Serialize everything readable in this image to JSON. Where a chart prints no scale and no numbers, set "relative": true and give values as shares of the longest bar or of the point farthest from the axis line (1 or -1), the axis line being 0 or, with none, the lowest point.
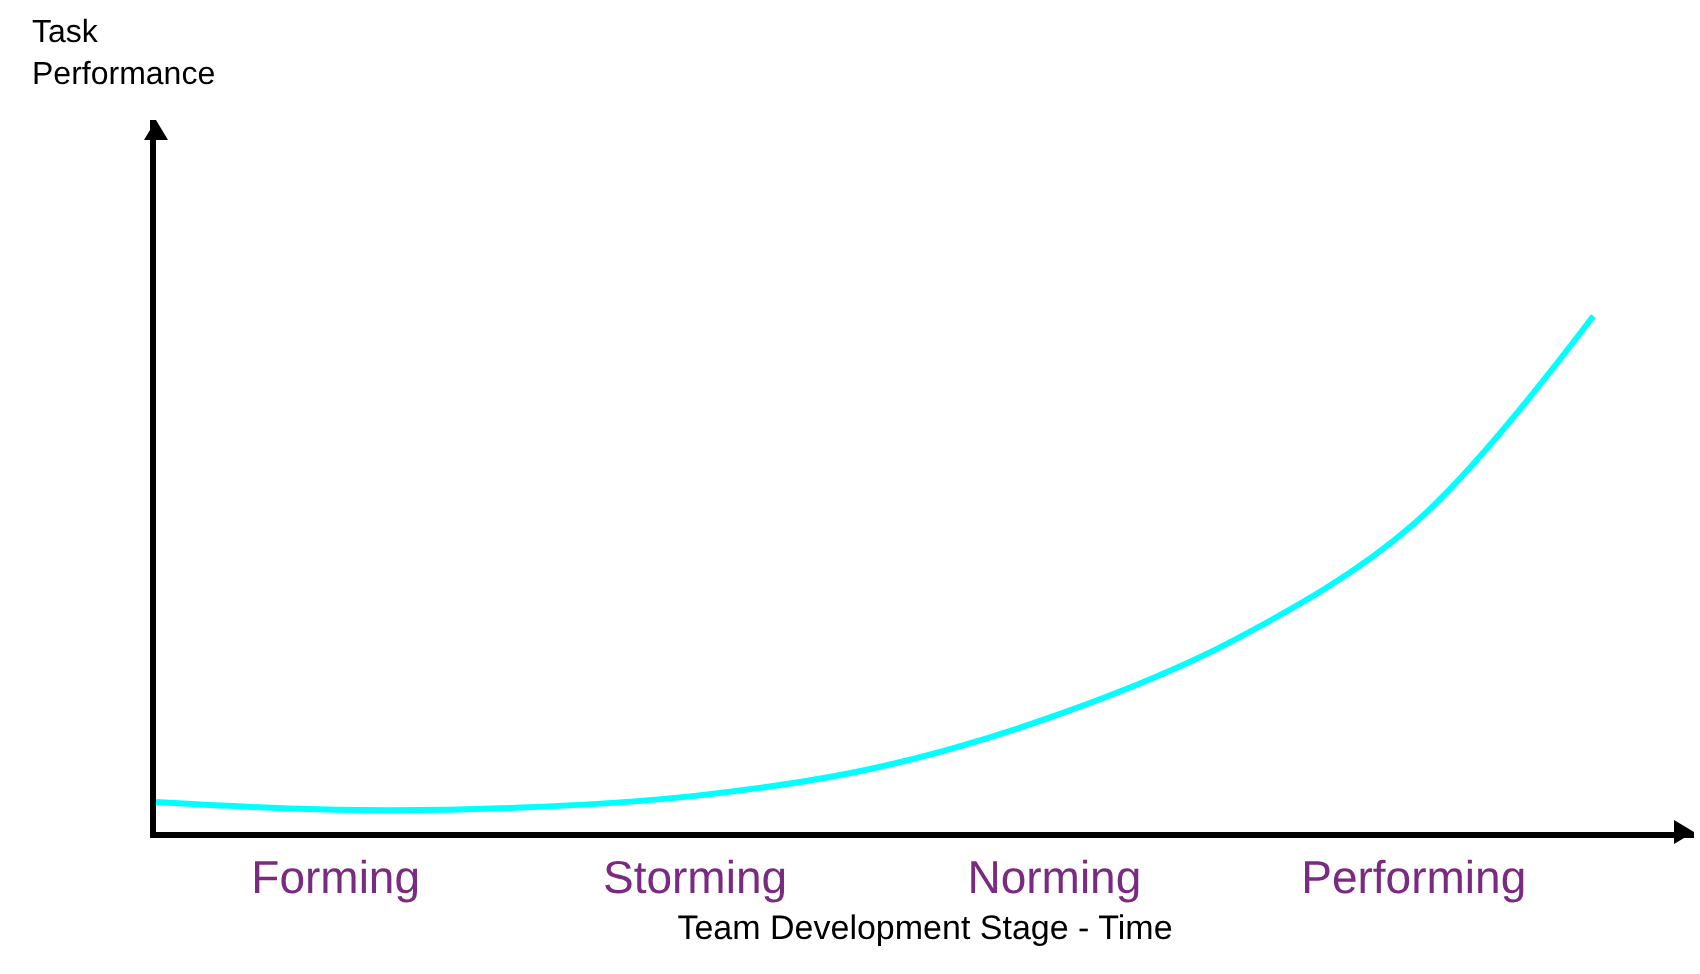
{
  "chart_data": {
    "type": "line",
    "relative": true,
    "xlabel": "Team Development Stage - Time",
    "annotations": [
      "Task Performance"
    ],
    "categories": [
      null,
      "Forming",
      null,
      "Storming",
      null,
      "Norming",
      null,
      "Performing",
      null
    ],
    "series": [
      {
        "color": "#00ffff",
        "values": [
          0.058,
          0.043,
          0.047,
          0.07,
          0.124,
          0.225,
          0.372,
          0.597,
          1.0
        ]
      }
    ],
    "legend": false,
    "marker": "none",
    "line_style": "solid"
  }
}
